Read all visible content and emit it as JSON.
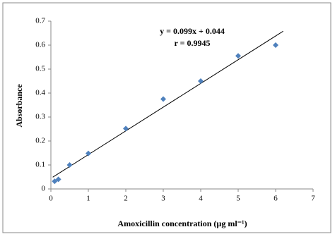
{
  "chart_data": {
    "type": "scatter",
    "xlabel": "Amoxicillin concentration (µg ml⁻¹)",
    "ylabel": "Absorbance",
    "annotations": [
      "y = 0.099x + 0.044",
      "r = 0.9945"
    ],
    "series": [
      {
        "color": "#4f81bd",
        "x": [
          0.1,
          0.2,
          0.5,
          1,
          2,
          3,
          4,
          5,
          6
        ],
        "values": [
          0.032,
          0.04,
          0.1,
          0.148,
          0.252,
          0.375,
          0.45,
          0.555,
          0.6
        ]
      }
    ],
    "trendline": {
      "color": "#000000",
      "x": [
        0.05,
        6.2
      ],
      "values": [
        0.049,
        0.658
      ]
    },
    "xlim": [
      0,
      7
    ],
    "xticks": [
      0,
      1,
      2,
      3,
      4,
      5,
      6,
      7
    ],
    "ylim": [
      0,
      0.7
    ],
    "yticks": [
      0,
      0.1,
      0.2,
      0.3,
      0.4,
      0.5,
      0.6,
      0.7
    ]
  }
}
